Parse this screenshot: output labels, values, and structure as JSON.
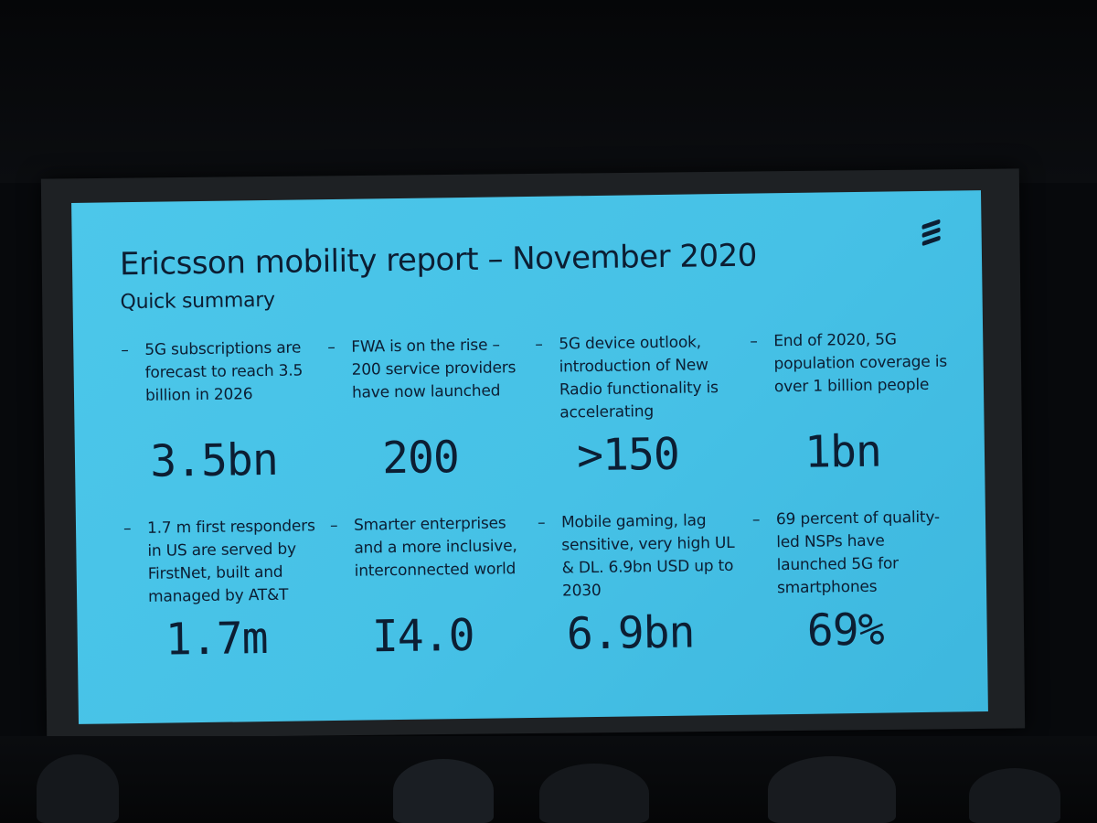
{
  "slide": {
    "title": "Ericsson mobility report – November 2020",
    "subtitle": "Quick summary",
    "logo_icon": "ericsson-logo-icon",
    "background_color": "#48c3e8",
    "text_color": "#0c1e33"
  },
  "stats": [
    {
      "dash": "–",
      "description": "5G subscriptions are forecast to reach 3.5 billion in 2026",
      "value": "3.5bn"
    },
    {
      "dash": "–",
      "description": "FWA is on the rise – 200 service providers have now launched",
      "value": "200"
    },
    {
      "dash": "–",
      "description": "5G device outlook, introduction of New Radio functionality is accelerating",
      "value": ">150"
    },
    {
      "dash": "–",
      "description": "End of 2020, 5G population coverage is over 1 billion people",
      "value": "1bn"
    },
    {
      "dash": "–",
      "description": "1.7 m first responders in US are served by FirstNet, built and managed by AT&T",
      "value": "1.7m"
    },
    {
      "dash": "–",
      "description": "Smarter enterprises and a more inclusive, interconnected world",
      "value": "I4.0"
    },
    {
      "dash": "–",
      "description": "Mobile gaming, lag sensitive, very high UL & DL. 6.9bn USD up to 2030",
      "value": "6.9bn"
    },
    {
      "dash": "–",
      "description": "69 percent of quality-led NSPs have launched 5G for smartphones",
      "value": "69%"
    }
  ]
}
